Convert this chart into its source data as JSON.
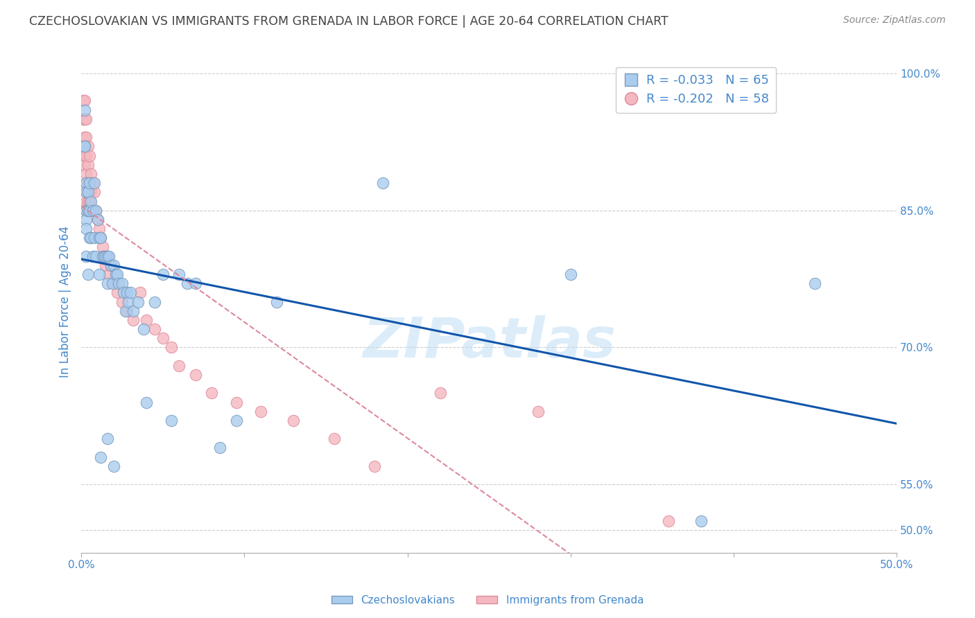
{
  "title": "CZECHOSLOVAKIAN VS IMMIGRANTS FROM GRENADA IN LABOR FORCE | AGE 20-64 CORRELATION CHART",
  "source": "Source: ZipAtlas.com",
  "ylabel_label": "In Labor Force | Age 20-64",
  "yticks": [
    0.5,
    0.55,
    0.7,
    0.85,
    1.0
  ],
  "ytick_labels": [
    "50.0%",
    "55.0%",
    "70.0%",
    "85.0%",
    "100.0%"
  ],
  "xmin": 0.0,
  "xmax": 0.5,
  "ymin": 0.475,
  "ymax": 1.025,
  "series1_label": "Czechoslovakians",
  "series1_color": "#aaccee",
  "series1_edge": "#7799bb",
  "series1_R": -0.033,
  "series1_N": 65,
  "series1_line_color": "#1155aa",
  "series2_label": "Immigrants from Grenada",
  "series2_color": "#f4b8c0",
  "series2_edge": "#dd8899",
  "series2_R": -0.202,
  "series2_N": 58,
  "series2_line_color": "#dd8899",
  "watermark": "ZIPatlas",
  "background_color": "#ffffff",
  "grid_color": "#cccccc",
  "title_color": "#444444",
  "axis_color": "#4488cc",
  "cs_x": [
    0.002,
    0.002,
    0.002,
    0.003,
    0.003,
    0.003,
    0.003,
    0.003,
    0.003,
    0.004,
    0.004,
    0.004,
    0.005,
    0.005,
    0.005,
    0.006,
    0.006,
    0.007,
    0.007,
    0.008,
    0.008,
    0.009,
    0.009,
    0.01,
    0.011,
    0.011,
    0.012,
    0.013,
    0.014,
    0.015,
    0.016,
    0.016,
    0.017,
    0.018,
    0.019,
    0.02,
    0.021,
    0.022,
    0.023,
    0.025,
    0.026,
    0.027,
    0.028,
    0.029,
    0.03,
    0.032,
    0.035,
    0.038,
    0.04,
    0.045,
    0.05,
    0.055,
    0.06,
    0.065,
    0.07,
    0.085,
    0.095,
    0.12,
    0.185,
    0.3,
    0.38,
    0.45,
    0.012,
    0.016,
    0.02
  ],
  "cs_y": [
    0.92,
    0.92,
    0.96,
    0.88,
    0.87,
    0.85,
    0.84,
    0.83,
    0.8,
    0.87,
    0.85,
    0.78,
    0.88,
    0.85,
    0.82,
    0.86,
    0.82,
    0.85,
    0.8,
    0.88,
    0.82,
    0.85,
    0.8,
    0.84,
    0.82,
    0.78,
    0.82,
    0.8,
    0.8,
    0.8,
    0.8,
    0.77,
    0.8,
    0.79,
    0.77,
    0.79,
    0.78,
    0.78,
    0.77,
    0.77,
    0.76,
    0.74,
    0.76,
    0.75,
    0.76,
    0.74,
    0.75,
    0.72,
    0.64,
    0.75,
    0.78,
    0.62,
    0.78,
    0.77,
    0.77,
    0.59,
    0.62,
    0.75,
    0.88,
    0.78,
    0.51,
    0.77,
    0.58,
    0.6,
    0.57
  ],
  "gr_x": [
    0.001,
    0.001,
    0.002,
    0.002,
    0.002,
    0.002,
    0.002,
    0.003,
    0.003,
    0.003,
    0.003,
    0.003,
    0.003,
    0.003,
    0.003,
    0.004,
    0.004,
    0.004,
    0.004,
    0.005,
    0.005,
    0.005,
    0.006,
    0.006,
    0.007,
    0.007,
    0.008,
    0.009,
    0.01,
    0.011,
    0.012,
    0.013,
    0.014,
    0.015,
    0.016,
    0.017,
    0.018,
    0.02,
    0.022,
    0.025,
    0.028,
    0.032,
    0.036,
    0.04,
    0.045,
    0.05,
    0.055,
    0.06,
    0.07,
    0.08,
    0.095,
    0.11,
    0.13,
    0.155,
    0.18,
    0.22,
    0.28,
    0.36
  ],
  "gr_y": [
    0.97,
    0.95,
    0.97,
    0.95,
    0.93,
    0.91,
    0.9,
    0.95,
    0.93,
    0.91,
    0.89,
    0.88,
    0.87,
    0.86,
    0.85,
    0.92,
    0.9,
    0.88,
    0.86,
    0.91,
    0.88,
    0.86,
    0.89,
    0.87,
    0.88,
    0.85,
    0.87,
    0.85,
    0.84,
    0.83,
    0.82,
    0.81,
    0.8,
    0.79,
    0.8,
    0.78,
    0.79,
    0.77,
    0.76,
    0.75,
    0.74,
    0.73,
    0.76,
    0.73,
    0.72,
    0.71,
    0.7,
    0.68,
    0.67,
    0.65,
    0.64,
    0.63,
    0.62,
    0.6,
    0.57,
    0.65,
    0.63,
    0.51
  ]
}
